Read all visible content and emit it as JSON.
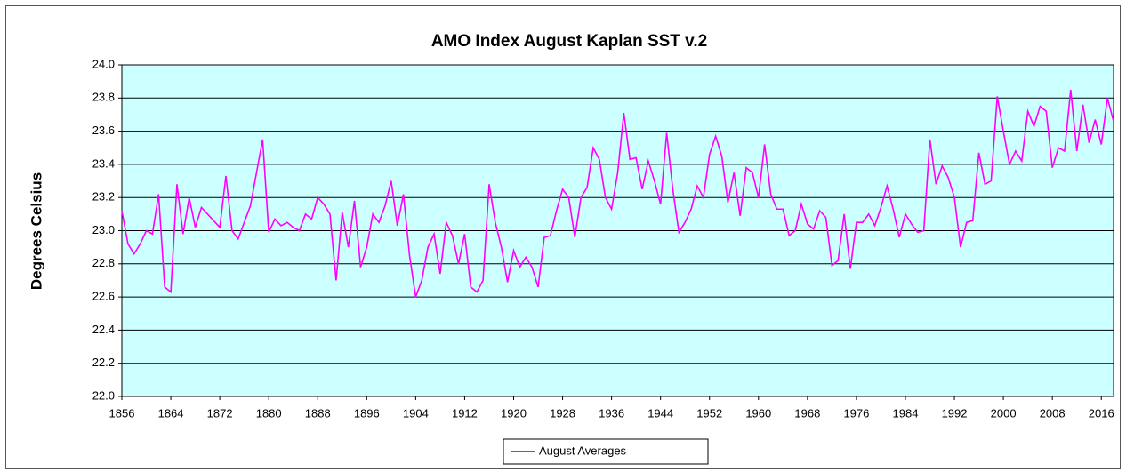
{
  "chart_data": {
    "type": "line",
    "title": "AMO Index August Kaplan SST v.2",
    "y_label": "Degrees Celsius",
    "x": [
      1856,
      1857,
      1858,
      1859,
      1860,
      1861,
      1862,
      1863,
      1864,
      1865,
      1866,
      1867,
      1868,
      1869,
      1870,
      1871,
      1872,
      1873,
      1874,
      1875,
      1876,
      1877,
      1878,
      1879,
      1880,
      1881,
      1882,
      1883,
      1884,
      1885,
      1886,
      1887,
      1888,
      1889,
      1890,
      1891,
      1892,
      1893,
      1894,
      1895,
      1896,
      1897,
      1898,
      1899,
      1900,
      1901,
      1902,
      1903,
      1904,
      1905,
      1906,
      1907,
      1908,
      1909,
      1910,
      1911,
      1912,
      1913,
      1914,
      1915,
      1916,
      1917,
      1918,
      1919,
      1920,
      1921,
      1922,
      1923,
      1924,
      1925,
      1926,
      1927,
      1928,
      1929,
      1930,
      1931,
      1932,
      1933,
      1934,
      1935,
      1936,
      1937,
      1938,
      1939,
      1940,
      1941,
      1942,
      1943,
      1944,
      1945,
      1946,
      1947,
      1948,
      1949,
      1950,
      1951,
      1952,
      1953,
      1954,
      1955,
      1956,
      1957,
      1958,
      1959,
      1960,
      1961,
      1962,
      1963,
      1964,
      1965,
      1966,
      1967,
      1968,
      1969,
      1970,
      1971,
      1972,
      1973,
      1974,
      1975,
      1976,
      1977,
      1978,
      1979,
      1980,
      1981,
      1982,
      1983,
      1984,
      1985,
      1986,
      1987,
      1988,
      1989,
      1990,
      1991,
      1992,
      1993,
      1994,
      1995,
      1996,
      1997,
      1998,
      1999,
      2000,
      2001,
      2002,
      2003,
      2004,
      2005,
      2006,
      2007,
      2008,
      2009,
      2010,
      2011,
      2012,
      2013,
      2014,
      2015,
      2016,
      2017,
      2018
    ],
    "series": [
      {
        "name": "August Averages",
        "color": "#ff00ff",
        "values": [
          23.12,
          22.92,
          22.86,
          22.92,
          23.0,
          22.98,
          23.22,
          22.66,
          22.63,
          23.28,
          22.98,
          23.2,
          23.02,
          23.14,
          23.1,
          23.06,
          23.02,
          23.33,
          23.0,
          22.95,
          23.05,
          23.15,
          23.35,
          23.55,
          22.99,
          23.07,
          23.03,
          23.05,
          23.02,
          23.0,
          23.1,
          23.07,
          23.2,
          23.16,
          23.1,
          22.7,
          23.11,
          22.9,
          23.18,
          22.78,
          22.9,
          23.1,
          23.05,
          23.15,
          23.3,
          23.03,
          23.22,
          22.85,
          22.6,
          22.7,
          22.9,
          22.98,
          22.74,
          23.05,
          22.97,
          22.8,
          22.98,
          22.66,
          22.63,
          22.7,
          23.28,
          23.05,
          22.9,
          22.69,
          22.88,
          22.78,
          22.84,
          22.78,
          22.66,
          22.96,
          22.97,
          23.12,
          23.25,
          23.2,
          22.96,
          23.2,
          23.26,
          23.5,
          23.43,
          23.2,
          23.13,
          23.35,
          23.71,
          23.43,
          23.44,
          23.25,
          23.42,
          23.3,
          23.16,
          23.59,
          23.25,
          22.99,
          23.05,
          23.13,
          23.27,
          23.2,
          23.46,
          23.57,
          23.45,
          23.17,
          23.35,
          23.09,
          23.38,
          23.35,
          23.2,
          23.52,
          23.22,
          23.13,
          23.13,
          22.97,
          23.0,
          23.16,
          23.04,
          23.01,
          23.12,
          23.08,
          22.79,
          22.82,
          23.1,
          22.77,
          23.05,
          23.05,
          23.1,
          23.03,
          23.14,
          23.27,
          23.13,
          22.96,
          23.1,
          23.04,
          22.99,
          23.0,
          23.55,
          23.28,
          23.39,
          23.32,
          23.2,
          22.9,
          23.05,
          23.06,
          23.47,
          23.28,
          23.3,
          23.81,
          23.6,
          23.4,
          23.48,
          23.42,
          23.72,
          23.63,
          23.75,
          23.72,
          23.38,
          23.5,
          23.48,
          23.85,
          23.48,
          23.76,
          23.53,
          23.67,
          23.52,
          23.8,
          23.66
        ]
      }
    ],
    "xlim": [
      1856,
      2018
    ],
    "xticks": [
      1856,
      1864,
      1872,
      1880,
      1888,
      1896,
      1904,
      1912,
      1920,
      1928,
      1936,
      1944,
      1952,
      1960,
      1968,
      1976,
      1984,
      1992,
      2000,
      2008,
      2016
    ],
    "ylim": [
      22.0,
      24.0
    ],
    "yticks": [
      {
        "value": 22.0,
        "label": "22.0"
      },
      22.2,
      22.4,
      22.6,
      22.8,
      {
        "value": 23.0,
        "label": "23.0"
      },
      23.2,
      23.4,
      23.6,
      23.8,
      {
        "value": 24.0,
        "label": "24.0"
      }
    ],
    "grid": true,
    "plot_background": "#ccffff",
    "legend": "bottom"
  }
}
